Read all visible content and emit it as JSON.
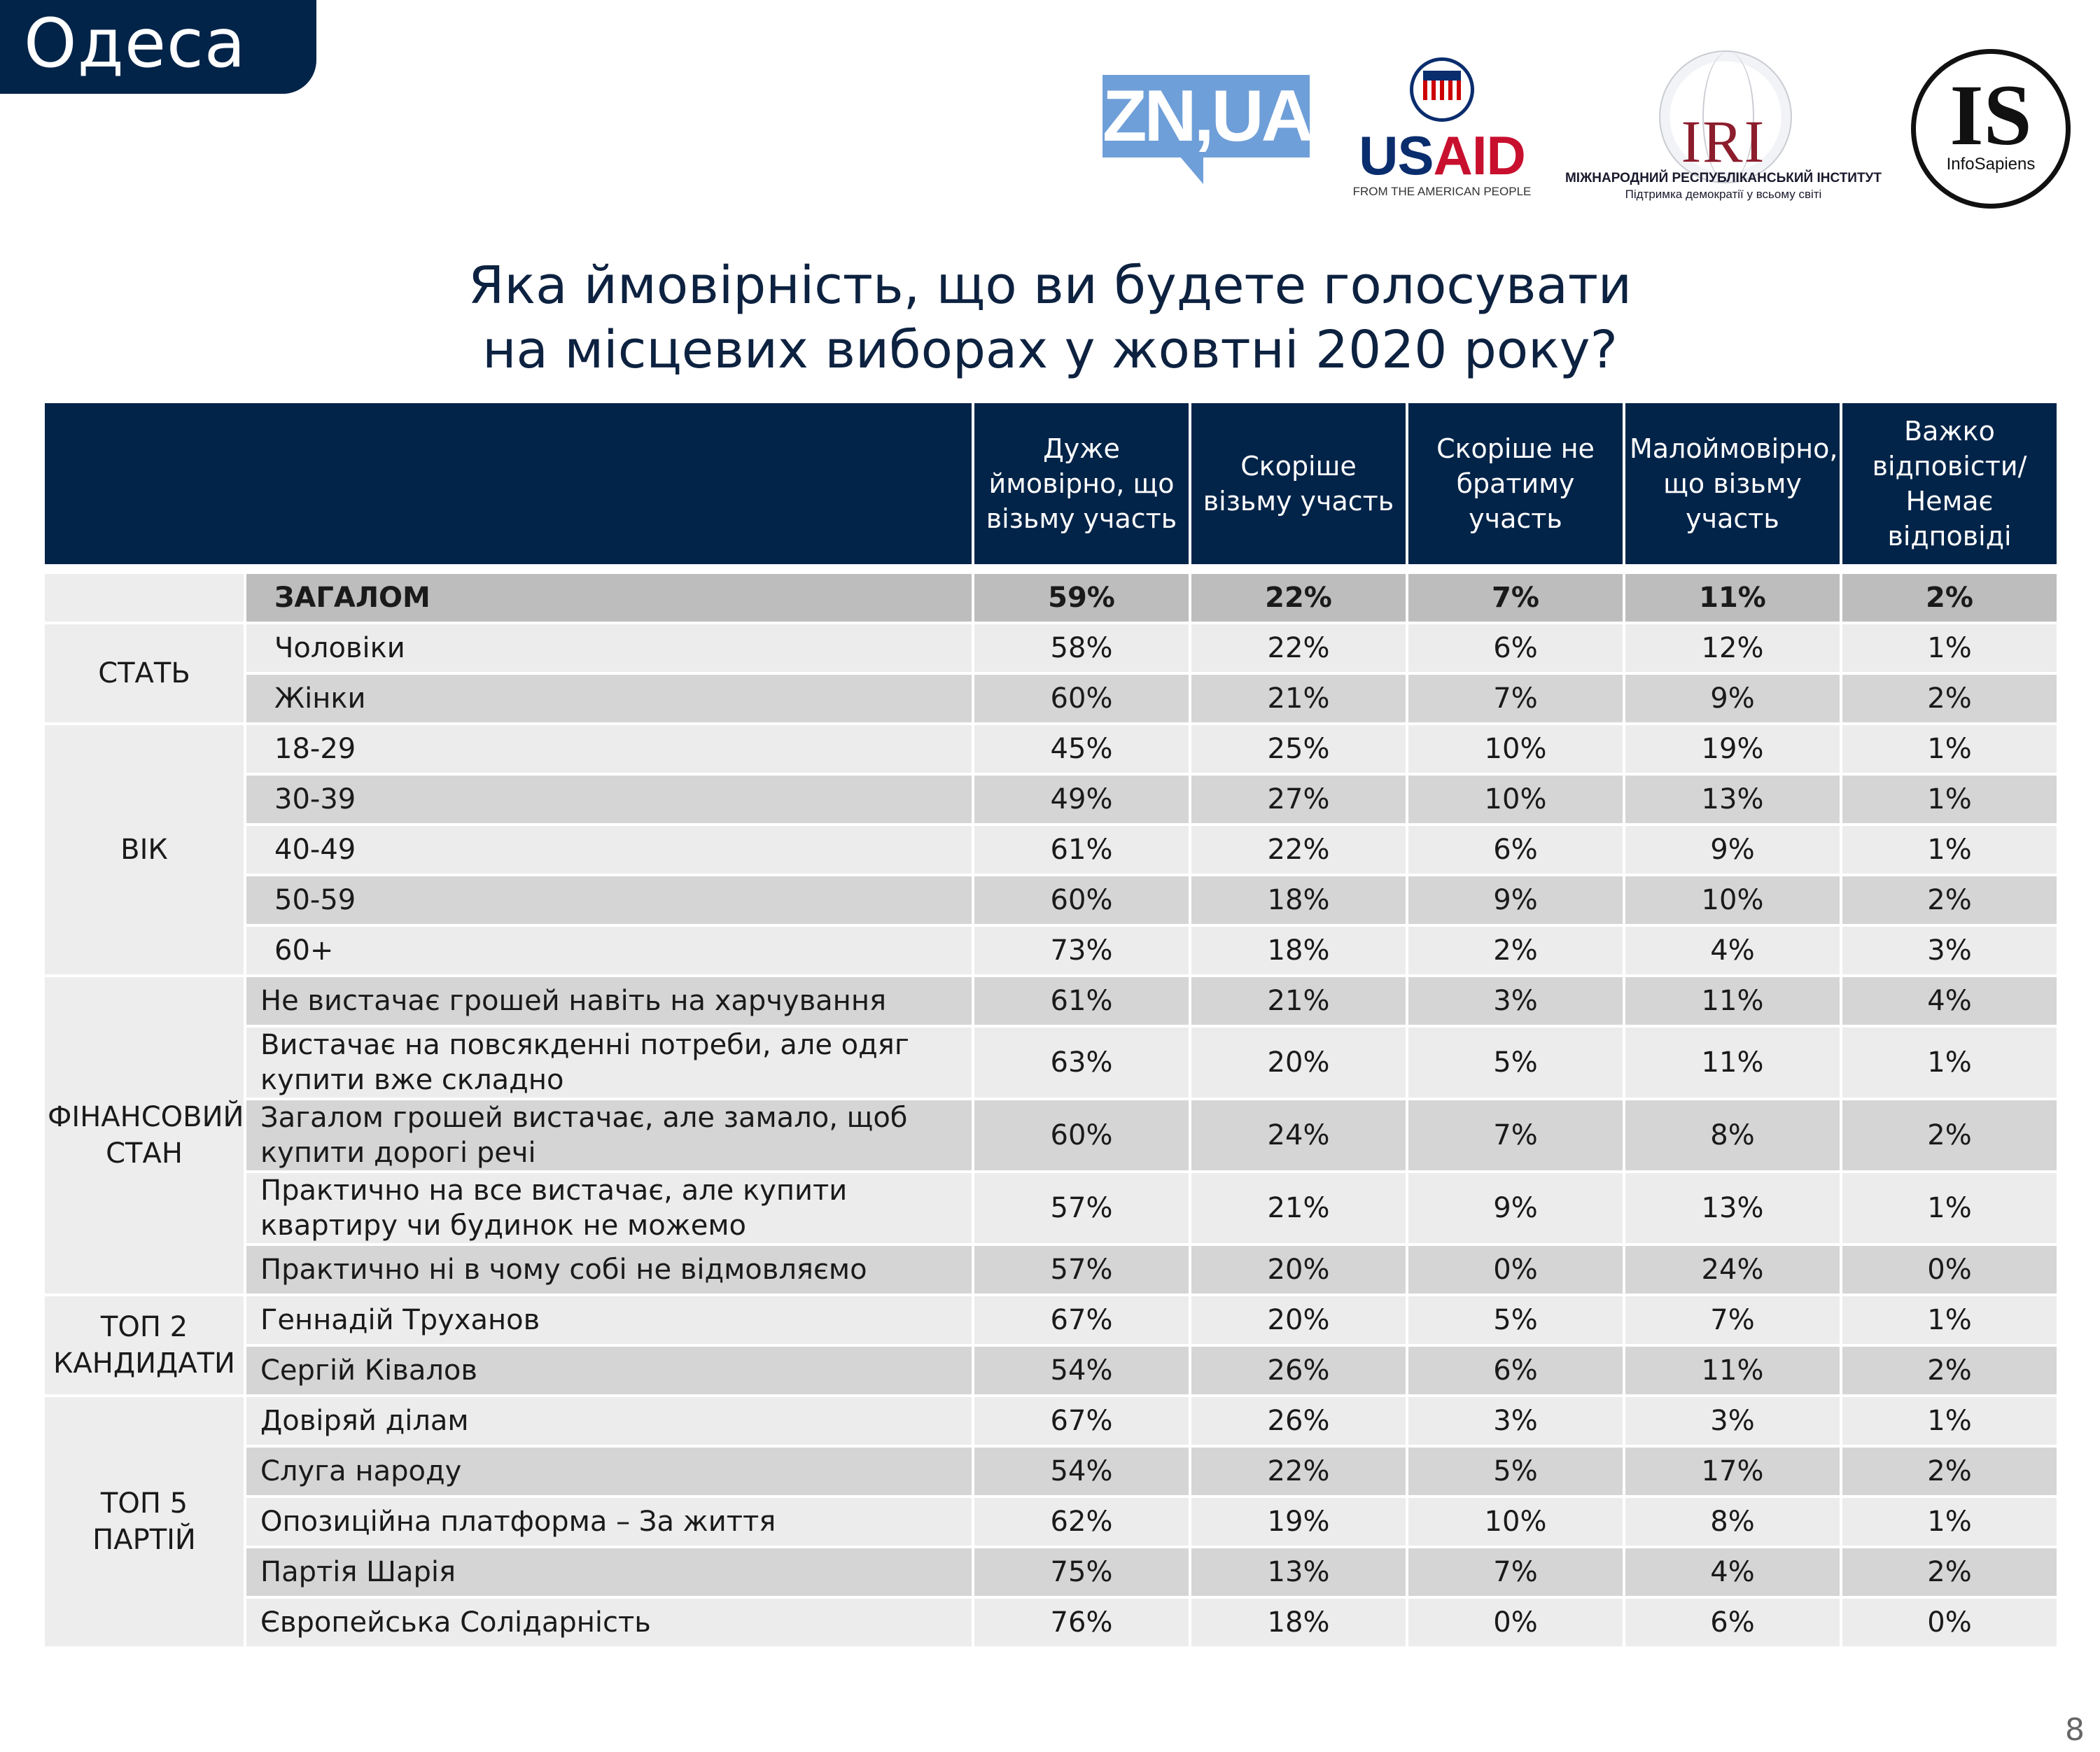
{
  "city_tab": "Одеса",
  "page_number": "8",
  "logos": {
    "zn": "ZN,UA",
    "usaid": {
      "us": "US",
      "aid": "AID",
      "tagline": "FROM THE AMERICAN PEOPLE"
    },
    "iri": {
      "mark": "IRI",
      "line1": "МІЖНАРОДНИЙ РЕСПУБЛІКАНСЬКИЙ ІНСТИТУТ",
      "line2": "Підтримка демократії у всьому світі"
    },
    "infosapiens": {
      "mark": "IS",
      "name": "InfoSapiens"
    }
  },
  "title": {
    "line1": "Яка ймовірність, що ви будете голосувати",
    "line2": "на місцевих виборах у жовтні 2020 року?"
  },
  "columns": [
    "Дуже ймовірно, що візьму участь",
    "Скоріше візьму участь",
    "Скоріше не братиму участь",
    "Малоймовірно, що візьму участь",
    "Важко відповісти/ Немає відповіді"
  ],
  "total": {
    "label": "ЗАГАЛОМ",
    "values": [
      "59%",
      "22%",
      "7%",
      "11%",
      "2%"
    ]
  },
  "groups": [
    {
      "name": "СТАТЬ",
      "rows": [
        {
          "label": "Чоловіки",
          "values": [
            "58%",
            "22%",
            "6%",
            "12%",
            "1%"
          ]
        },
        {
          "label": "Жінки",
          "values": [
            "60%",
            "21%",
            "7%",
            "9%",
            "2%"
          ]
        }
      ]
    },
    {
      "name": "ВІК",
      "rows": [
        {
          "label": "18-29",
          "values": [
            "45%",
            "25%",
            "10%",
            "19%",
            "1%"
          ]
        },
        {
          "label": "30-39",
          "values": [
            "49%",
            "27%",
            "10%",
            "13%",
            "1%"
          ]
        },
        {
          "label": "40-49",
          "values": [
            "61%",
            "22%",
            "6%",
            "9%",
            "1%"
          ]
        },
        {
          "label": "50-59",
          "values": [
            "60%",
            "18%",
            "9%",
            "10%",
            "2%"
          ]
        },
        {
          "label": "60+",
          "values": [
            "73%",
            "18%",
            "2%",
            "4%",
            "3%"
          ]
        }
      ]
    },
    {
      "name": "ФІНАНСОВИЙ СТАН",
      "rows": [
        {
          "label": "Не вистачає грошей навіть на харчування",
          "values": [
            "61%",
            "21%",
            "3%",
            "11%",
            "4%"
          ]
        },
        {
          "label": "Вистачає на повсякденні потреби, але одяг купити вже складно",
          "values": [
            "63%",
            "20%",
            "5%",
            "11%",
            "1%"
          ]
        },
        {
          "label": "Загалом грошей вистачає, але замало, щоб купити дорогі речі",
          "values": [
            "60%",
            "24%",
            "7%",
            "8%",
            "2%"
          ]
        },
        {
          "label": "Практично на все вистачає, але купити квартиру чи будинок не можемо",
          "values": [
            "57%",
            "21%",
            "9%",
            "13%",
            "1%"
          ]
        },
        {
          "label": "Практично ні в чому собі не відмовляємо",
          "values": [
            "57%",
            "20%",
            "0%",
            "24%",
            "0%"
          ]
        }
      ]
    },
    {
      "name": "ТОП 2 КАНДИДАТИ",
      "rows": [
        {
          "label": "Геннадій Труханов",
          "values": [
            "67%",
            "20%",
            "5%",
            "7%",
            "1%"
          ]
        },
        {
          "label": "Сергій Ківалов",
          "values": [
            "54%",
            "26%",
            "6%",
            "11%",
            "2%"
          ]
        }
      ]
    },
    {
      "name": "ТОП 5 ПАРТІЙ",
      "rows": [
        {
          "label": "Довіряй ділам",
          "values": [
            "67%",
            "26%",
            "3%",
            "3%",
            "1%"
          ]
        },
        {
          "label": "Слуга народу",
          "values": [
            "54%",
            "22%",
            "5%",
            "17%",
            "2%"
          ]
        },
        {
          "label": "Опозиційна платформа – За життя",
          "values": [
            "62%",
            "19%",
            "10%",
            "8%",
            "1%"
          ]
        },
        {
          "label": "Партія Шарія",
          "values": [
            "75%",
            "13%",
            "7%",
            "4%",
            "2%"
          ]
        },
        {
          "label": "Європейська Солідарність",
          "values": [
            "76%",
            "18%",
            "0%",
            "6%",
            "0%"
          ]
        }
      ]
    }
  ]
}
